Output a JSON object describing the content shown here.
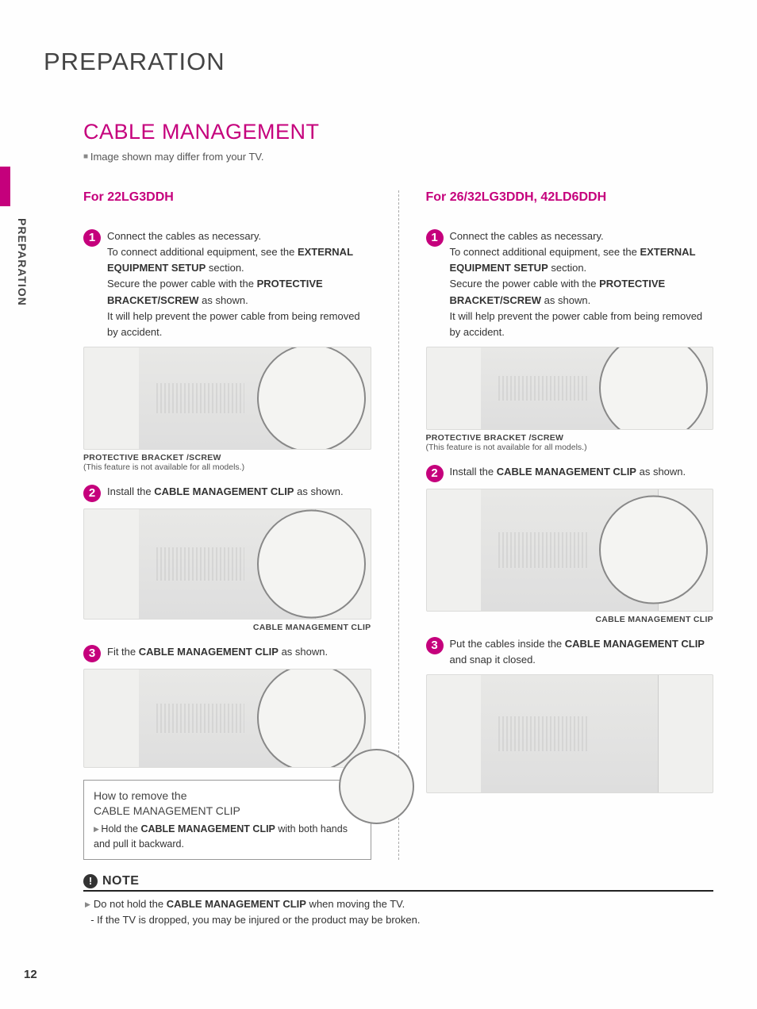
{
  "page_number": "12",
  "chapter_title": "PREPARATION",
  "side_label": "PREPARATION",
  "section_title": "CABLE MANAGEMENT",
  "subtitle": "Image shown may differ from your TV.",
  "accent_color": "#c5007c",
  "left_col": {
    "model_header": "For 22LG3DDH",
    "steps": [
      {
        "num": "1",
        "html": "Connect the cables as necessary.<br>To connect additional equipment, see the <b>EXTERNAL EQUIPMENT SETUP</b> section.<br>Secure the power cable with the <b>PROTECTIVE BRACKET/SCREW</b> as shown.<br>It will help prevent the power cable from being removed by accident.",
        "caption_bold": "PROTECTIVE BRACKET /SCREW",
        "caption_sub": "(This feature is not available for all models.)",
        "illus_height": 130
      },
      {
        "num": "2",
        "html": "Install the <b>CABLE MANAGEMENT CLIP</b> as shown.",
        "caption_right": "CABLE MANAGEMENT CLIP",
        "illus_height": 140
      },
      {
        "num": "3",
        "html": "Fit the <b>CABLE MANAGEMENT CLIP</b> as shown.",
        "illus_height": 125
      }
    ],
    "howto": {
      "title_line1": "How to remove the",
      "title_line2": "CABLE MANAGEMENT CLIP",
      "body_html": "Hold the <b>CABLE MANAGEMENT CLIP</b> with both hands and pull it backward."
    }
  },
  "right_col": {
    "model_header": "For 26/32LG3DDH, 42LD6DDH",
    "steps": [
      {
        "num": "1",
        "html": "Connect the cables as necessary.<br>To connect additional equipment, see the <b>EXTERNAL EQUIPMENT SETUP</b> section.<br>Secure the power cable with the <b>PROTECTIVE BRACKET/SCREW</b> as shown.<br>It will help prevent the power cable from being removed by accident.",
        "caption_bold": "PROTECTIVE BRACKET /SCREW",
        "caption_sub": "(This feature is not available for all models.)",
        "illus_height": 105
      },
      {
        "num": "2",
        "html": "Install the <b>CABLE MANAGEMENT CLIP</b> as shown.",
        "caption_right": "CABLE MANAGEMENT CLIP",
        "illus_height": 155
      },
      {
        "num": "3",
        "html": "Put the cables inside the <b>CABLE MANAGEMENT CLIP</b> and snap it closed.",
        "illus_height": 150
      }
    ]
  },
  "note": {
    "title": "NOTE",
    "body_html": "Do not hold the <b>CABLE MANAGEMENT CLIP</b> when moving the TV.<br>&nbsp;&nbsp;- If the TV is dropped, you may be injured or the product may be broken."
  }
}
